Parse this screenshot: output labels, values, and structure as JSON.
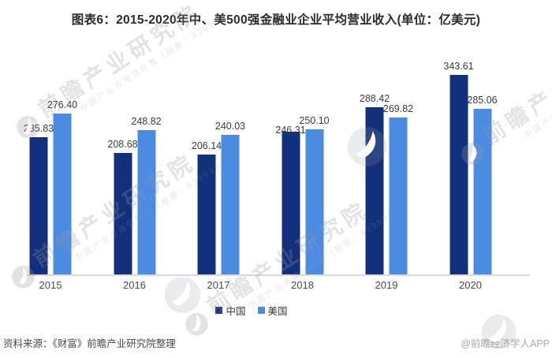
{
  "page": {
    "title": "图表6：2015-2020年中、美500强金融业企业平均营业收入(单位：亿美元)"
  },
  "chart_data": {
    "type": "bar",
    "title": "2015-2020年中、美500强金融业企业平均营业收入",
    "unit": "亿美元",
    "categories": [
      "2015",
      "2016",
      "2017",
      "2018",
      "2019",
      "2020"
    ],
    "series": [
      {
        "name": "中国",
        "key": "china",
        "color": "#12307C",
        "values": [
          235.83,
          208.68,
          206.14,
          246.31,
          288.42,
          343.61
        ]
      },
      {
        "name": "美国",
        "key": "usa",
        "color": "#4C8BE2",
        "values": [
          276.4,
          248.82,
          240.03,
          250.1,
          269.82,
          285.06
        ]
      }
    ],
    "xlabel": "",
    "ylabel": "",
    "ylim": [
      0,
      380
    ],
    "grid": false,
    "axis_line_color": "#d9d9d9",
    "legend_position": "bottom",
    "value_labels": true,
    "value_label_decimals": 2
  },
  "footer": {
    "source": "资料来源：《财富》前瞻产业研究院整理",
    "credit": "@前瞻经济学人APP"
  },
  "watermark": {
    "text": "前瞻产业研究院",
    "subtext": "中国产业咨询领导者（股票：839599）"
  }
}
